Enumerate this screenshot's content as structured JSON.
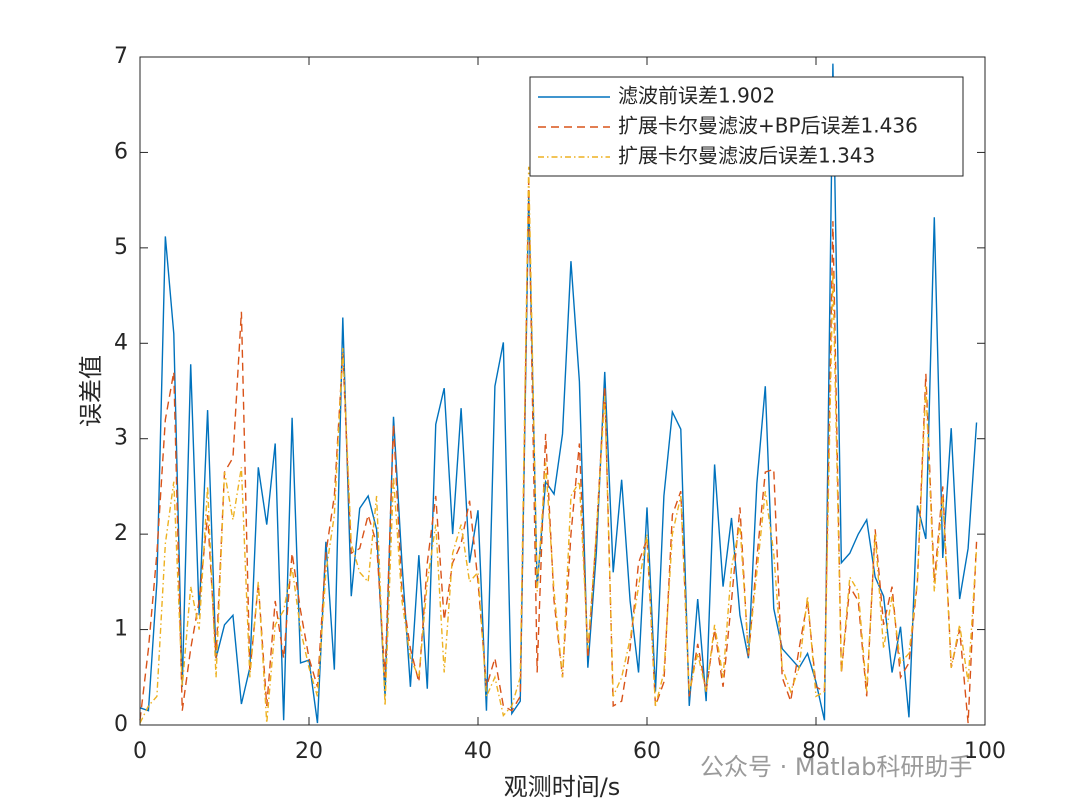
{
  "chart_data": {
    "type": "line",
    "x_label": "观测时间/s",
    "y_label": "误差值",
    "annotation": "公众号 · Matlab科研助手",
    "x": [
      0,
      1,
      2,
      3,
      4,
      5,
      6,
      7,
      8,
      9,
      10,
      11,
      12,
      13,
      14,
      15,
      16,
      17,
      18,
      19,
      20,
      21,
      22,
      23,
      24,
      25,
      26,
      27,
      28,
      29,
      30,
      31,
      32,
      33,
      34,
      35,
      36,
      37,
      38,
      39,
      40,
      41,
      42,
      43,
      44,
      45,
      46,
      47,
      48,
      49,
      50,
      51,
      52,
      53,
      54,
      55,
      56,
      57,
      58,
      59,
      60,
      61,
      62,
      63,
      64,
      65,
      66,
      67,
      68,
      69,
      70,
      71,
      72,
      73,
      74,
      75,
      76,
      77,
      78,
      79,
      80,
      81,
      82,
      83,
      84,
      85,
      86,
      87,
      88,
      89,
      90,
      91,
      92,
      93,
      94,
      95,
      96,
      97,
      98,
      99
    ],
    "series": [
      {
        "name": "滤波前误差1.902",
        "color": "#0072bd",
        "dash": "none",
        "values": [
          0.18,
          0.15,
          1.5,
          5.12,
          4.1,
          0.4,
          3.78,
          1.15,
          3.3,
          0.7,
          1.05,
          1.15,
          0.22,
          0.6,
          2.7,
          2.1,
          2.95,
          0.05,
          3.22,
          0.65,
          0.68,
          0.02,
          1.92,
          0.58,
          4.27,
          1.35,
          2.27,
          2.4,
          2.05,
          0.3,
          3.23,
          1.7,
          0.4,
          1.78,
          0.38,
          3.15,
          3.53,
          2.0,
          3.32,
          1.7,
          2.25,
          0.15,
          3.55,
          4.01,
          0.12,
          0.25,
          5.55,
          1.45,
          2.55,
          2.42,
          3.05,
          4.86,
          3.6,
          0.6,
          1.8,
          3.7,
          1.6,
          2.57,
          1.3,
          0.55,
          2.28,
          0.35,
          2.4,
          3.28,
          3.1,
          0.2,
          1.32,
          0.25,
          2.73,
          1.45,
          2.17,
          1.15,
          0.7,
          2.53,
          3.55,
          1.22,
          0.8,
          0.7,
          0.6,
          0.75,
          0.45,
          0.05,
          6.93,
          1.7,
          1.8,
          2.0,
          2.15,
          1.55,
          1.35,
          0.55,
          1.03,
          0.08,
          2.3,
          1.95,
          5.32,
          1.75,
          3.11,
          1.32,
          1.85,
          3.17
        ]
      },
      {
        "name": "扩展卡尔曼滤波+BP后误差1.436",
        "color": "#d95319",
        "dash": "8,5",
        "values": [
          0.05,
          0.8,
          1.8,
          3.2,
          3.7,
          0.15,
          0.8,
          1.3,
          2.2,
          0.7,
          2.65,
          2.8,
          4.33,
          0.55,
          1.48,
          0.2,
          1.3,
          0.7,
          1.8,
          1.2,
          0.7,
          0.4,
          1.8,
          2.4,
          3.9,
          1.8,
          1.85,
          2.2,
          1.9,
          0.5,
          3.15,
          1.4,
          0.8,
          0.45,
          1.7,
          2.4,
          1.1,
          1.7,
          1.9,
          2.35,
          1.5,
          0.4,
          0.7,
          0.2,
          0.15,
          0.3,
          5.7,
          0.55,
          3.05,
          1.3,
          0.5,
          2.0,
          2.95,
          0.7,
          2.0,
          3.55,
          0.2,
          0.25,
          0.8,
          1.7,
          1.95,
          0.2,
          0.45,
          2.2,
          2.45,
          0.3,
          0.85,
          0.35,
          1.0,
          0.4,
          1.3,
          2.28,
          0.7,
          1.75,
          2.65,
          2.68,
          0.5,
          0.25,
          0.8,
          1.3,
          0.4,
          0.35,
          5.28,
          0.55,
          1.45,
          1.3,
          0.3,
          2.05,
          1.05,
          1.45,
          0.5,
          0.65,
          1.5,
          3.68,
          1.5,
          2.5,
          0.6,
          1.0,
          0.02,
          1.92
        ]
      },
      {
        "name": "扩展卡尔曼滤波后误差1.343",
        "color": "#edb120",
        "dash": "6,3,1.5,3",
        "values": [
          0.02,
          0.2,
          0.3,
          1.9,
          2.55,
          0.4,
          1.45,
          1.0,
          2.5,
          0.5,
          2.65,
          2.15,
          2.7,
          0.5,
          1.5,
          0.02,
          1.05,
          1.2,
          1.65,
          1.0,
          0.6,
          0.3,
          1.6,
          2.2,
          3.95,
          1.9,
          1.6,
          1.5,
          2.4,
          0.2,
          2.6,
          1.3,
          0.7,
          0.5,
          1.5,
          2.1,
          0.55,
          1.8,
          2.1,
          1.5,
          1.6,
          0.3,
          0.5,
          0.1,
          0.2,
          0.5,
          5.85,
          1.4,
          2.75,
          1.4,
          0.5,
          2.4,
          2.55,
          0.8,
          2.0,
          3.45,
          0.3,
          0.5,
          0.9,
          1.45,
          2.0,
          0.2,
          0.55,
          2.0,
          2.4,
          0.35,
          0.75,
          0.35,
          1.05,
          0.5,
          1.65,
          2.1,
          0.75,
          1.6,
          2.45,
          1.8,
          0.6,
          0.35,
          0.6,
          1.35,
          0.3,
          0.35,
          4.75,
          0.55,
          1.55,
          1.4,
          0.35,
          2.0,
          0.8,
          1.35,
          0.65,
          0.75,
          1.5,
          3.55,
          1.4,
          2.4,
          0.6,
          1.05,
          0.45,
          1.85
        ]
      }
    ],
    "xlim": [
      0,
      100
    ],
    "ylim": [
      0,
      7
    ],
    "xticks": [
      0,
      20,
      40,
      60,
      80,
      100
    ],
    "yticks": [
      0,
      1,
      2,
      3,
      4,
      5,
      6,
      7
    ],
    "grid": false,
    "legend": "northeast"
  }
}
